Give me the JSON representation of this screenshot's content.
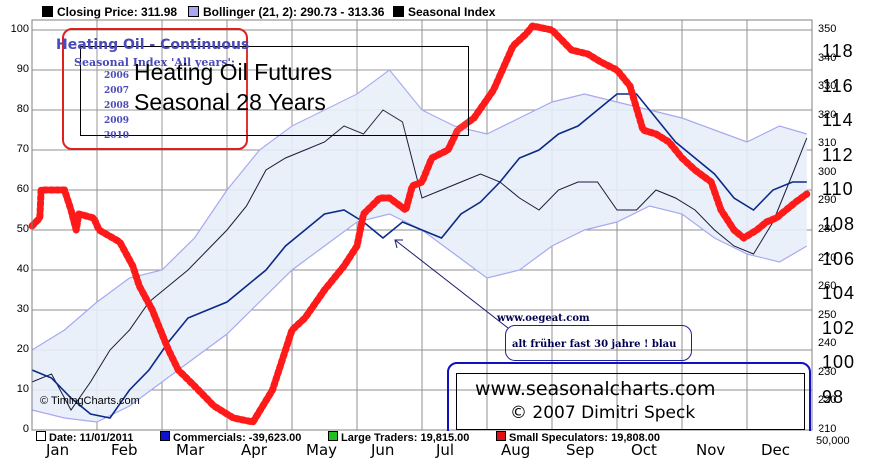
{
  "legend": {
    "closing_price": "Closing Price: 311.98",
    "bollinger": "Bollinger (21, 2): 290.73 - 313.36",
    "seasonal": "Seasonal Index"
  },
  "overlay": {
    "heating_oil_title": "Heating Oil - Continuous",
    "seasonal_subtitle": "Seasonal Index 'All years':",
    "years": [
      "2006",
      "2007",
      "2008",
      "2009",
      "2010"
    ],
    "headline_line1": "Heating Oil Futures",
    "headline_line2": "Seasonal 28 Years"
  },
  "annotation": {
    "url_small": "www.oegeat.com",
    "note": "alt früher fast 30 jahre ! blau"
  },
  "credit": {
    "url": "www.seasonalcharts.com",
    "copyright": "© 2007   Dimitri Speck",
    "watermark": "© TimingCharts.com"
  },
  "bottom_legend": {
    "date": "Date: 11/01/2011",
    "commercials": "Commercials: -39,623.00",
    "large_traders": "Large Traders: 19,815.00",
    "small_specs": "Small Speculators: 19,808.00"
  },
  "volume_label": "50,000",
  "colors": {
    "closing_price": "#000000",
    "bollinger_band": "#a8a8f0",
    "seasonal_index": "#000000",
    "red_overlay": "#ff1a1a",
    "blue_overlay": "#0a2a8a",
    "commercials": "#1010d0",
    "large_traders": "#20c020",
    "small_specs": "#e01010",
    "grid": "#808080"
  },
  "chart_data": {
    "type": "line",
    "x_months": [
      "Jan",
      "Feb",
      "Mar",
      "Apr",
      "May",
      "Jun",
      "Jul",
      "Aug",
      "Sep",
      "Oct",
      "Nov",
      "Dec"
    ],
    "left_axis": {
      "ticks": [
        0,
        10,
        20,
        30,
        40,
        50,
        60,
        70,
        80,
        90,
        100
      ],
      "ylim": [
        0,
        100
      ]
    },
    "right_price_axis": {
      "ticks": [
        210,
        220,
        230,
        240,
        250,
        260,
        270,
        280,
        290,
        300,
        310,
        320,
        330,
        340,
        350
      ],
      "ylim": [
        210,
        350
      ]
    },
    "right_seasonal_axis": {
      "ticks": [
        98,
        100,
        102,
        104,
        106,
        108,
        110,
        112,
        114,
        116,
        118
      ]
    },
    "series": [
      {
        "name": "Seasonal Index",
        "x": [
          0.0,
          0.12,
          0.14,
          0.5,
          0.6,
          0.68,
          0.72,
          0.95,
          1.03,
          1.35,
          1.55,
          1.65,
          1.85,
          2.1,
          2.25,
          2.5,
          2.8,
          3.1,
          3.4,
          3.7,
          4.0,
          4.2,
          4.5,
          4.8,
          5.0,
          5.1,
          5.35,
          5.5,
          5.75,
          5.85,
          6.0,
          6.15,
          6.4,
          6.55,
          6.8,
          7.1,
          7.4,
          7.6,
          7.7,
          8.0,
          8.3,
          8.55,
          8.75,
          9.0,
          9.2,
          9.4,
          9.6,
          9.8,
          10.0,
          10.2,
          10.45,
          10.6,
          10.8,
          10.95,
          11.15,
          11.3,
          11.45,
          11.6,
          11.75,
          11.92
        ],
        "y": [
          51,
          53,
          60,
          60,
          55,
          50,
          54,
          53,
          50,
          47,
          41,
          36,
          30,
          20,
          15,
          11,
          6,
          3,
          2,
          10,
          25,
          28,
          35,
          41,
          46,
          54,
          58,
          58,
          55,
          61,
          62,
          68,
          70,
          75,
          78,
          85,
          96,
          99,
          101,
          100,
          95,
          94,
          92,
          90,
          86,
          75,
          74,
          72,
          68,
          65,
          62,
          55,
          50,
          48,
          50,
          52,
          53,
          55,
          57,
          59
        ]
      },
      {
        "name": "Closing Price",
        "x": [
          0.0,
          0.3,
          0.6,
          0.9,
          1.2,
          1.5,
          1.8,
          2.1,
          2.4,
          2.7,
          3.0,
          3.3,
          3.6,
          3.9,
          4.2,
          4.5,
          4.8,
          5.1,
          5.4,
          5.7,
          6.0,
          6.3,
          6.6,
          6.9,
          7.2,
          7.5,
          7.8,
          8.1,
          8.4,
          8.7,
          9.0,
          9.3,
          9.6,
          9.9,
          10.2,
          10.5,
          10.8,
          11.1,
          11.4,
          11.7,
          11.92
        ],
        "y": [
          12,
          14,
          5,
          12,
          20,
          25,
          32,
          36,
          40,
          45,
          50,
          56,
          65,
          68,
          70,
          72,
          76,
          74,
          80,
          77,
          58,
          60,
          62,
          64,
          62,
          58,
          55,
          60,
          62,
          62,
          55,
          55,
          60,
          58,
          55,
          50,
          46,
          44,
          52,
          64,
          73
        ]
      },
      {
        "name": "Seasonal overlay (blue)",
        "x": [
          0.0,
          0.3,
          0.6,
          0.9,
          1.2,
          1.5,
          1.8,
          2.1,
          2.4,
          2.7,
          3.0,
          3.3,
          3.6,
          3.9,
          4.2,
          4.5,
          4.8,
          5.1,
          5.4,
          5.7,
          6.0,
          6.3,
          6.6,
          6.9,
          7.2,
          7.5,
          7.8,
          8.1,
          8.4,
          8.7,
          9.0,
          9.3,
          9.6,
          9.9,
          10.2,
          10.5,
          10.8,
          11.1,
          11.4,
          11.7,
          11.92
        ],
        "y": [
          15,
          13,
          8,
          4,
          3,
          10,
          15,
          22,
          28,
          30,
          32,
          36,
          40,
          46,
          50,
          54,
          55,
          52,
          48,
          52,
          50,
          48,
          54,
          57,
          62,
          68,
          70,
          74,
          76,
          80,
          84,
          84,
          78,
          72,
          68,
          64,
          58,
          55,
          60,
          62,
          62
        ]
      },
      {
        "name": "Bollinger upper",
        "x": [
          0.0,
          0.5,
          1.0,
          1.5,
          2.0,
          2.5,
          3.0,
          3.5,
          4.0,
          4.5,
          5.0,
          5.5,
          6.0,
          6.5,
          7.0,
          7.5,
          8.0,
          8.5,
          9.0,
          9.5,
          10.0,
          10.5,
          11.0,
          11.5,
          11.92
        ],
        "y": [
          20,
          25,
          32,
          38,
          40,
          48,
          60,
          70,
          76,
          80,
          84,
          90,
          80,
          76,
          74,
          78,
          82,
          84,
          82,
          80,
          78,
          75,
          72,
          76,
          74
        ]
      },
      {
        "name": "Bollinger lower",
        "x": [
          0.0,
          0.5,
          1.0,
          1.5,
          2.0,
          2.5,
          3.0,
          3.5,
          4.0,
          4.5,
          5.0,
          5.5,
          6.0,
          6.5,
          7.0,
          7.5,
          8.0,
          8.5,
          9.0,
          9.5,
          10.0,
          10.5,
          11.0,
          11.5,
          11.92
        ],
        "y": [
          5,
          3,
          2,
          6,
          12,
          18,
          24,
          32,
          40,
          46,
          52,
          54,
          50,
          44,
          38,
          40,
          46,
          50,
          52,
          56,
          54,
          48,
          44,
          42,
          46
        ]
      }
    ],
    "grid": true,
    "legend_position": "top"
  }
}
